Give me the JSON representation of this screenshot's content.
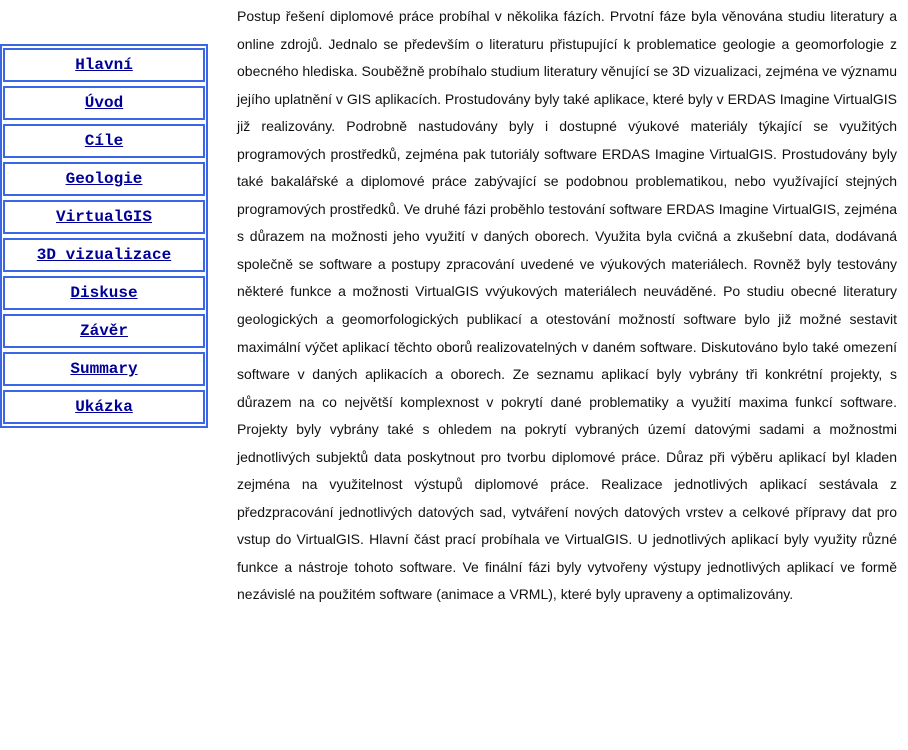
{
  "navigation": {
    "items": [
      "Hlavní",
      "Úvod",
      "Cíle",
      "Geologie",
      "VirtualGIS",
      "3D vizualizace",
      "Diskuse",
      "Závěr",
      "Summary",
      "Ukázka"
    ]
  },
  "content": {
    "paragraph": "Postup řešení diplomové práce probíhal v několika fázích. Prvotní fáze byla věnována studiu literatury a online zdrojů. Jednalo se především o literaturu přistupující k problematice geologie a geomorfologie z obecného hlediska. Souběžně probíhalo studium literatury věnující se 3D vizualizaci, zejména ve významu jejího uplatnění v GIS aplikacích. Prostudovány byly také aplikace, které byly v ERDAS Imagine VirtualGIS již realizovány. Podrobně nastudovány byly i dostupné výukové materiály týkající se využitých programových prostředků, zejména pak tutoriály software ERDAS Imagine VirtualGIS. Prostudovány byly také bakalářské a diplomové práce zabývající se podobnou problematikou, nebo využívající stejných programových prostředků. Ve druhé fázi proběhlo testování software ERDAS Imagine VirtualGIS, zejména s důrazem na možnosti jeho využití v daných oborech. Využita byla cvičná a zkušební data, dodávaná společně se software a postupy zpracování uvedené ve výukových materiálech. Rovněž byly testovány některé funkce a možnosti VirtualGIS vvýukových materiálech neuváděné. Po studiu obecné literatury geologických a geomorfologických publikací a otestování možností software bylo již možné sestavit maximální výčet aplikací těchto oborů realizovatelných v daném software. Diskutováno bylo také omezení software v daných aplikacích a oborech. Ze seznamu aplikací byly vybrány tři konkrétní projekty, s důrazem na co největší komplexnost v pokrytí dané problematiky a využití maxima funkcí software. Projekty byly vybrány také s ohledem na pokrytí vybraných území datovými sadami a možnostmi jednotlivých subjektů data poskytnout pro tvorbu diplomové práce. Důraz při výběru aplikací byl kladen zejména na využitelnost výstupů diplomové práce. Realizace jednotlivých aplikací sestávala z předzpracování jednotlivých datových sad, vytváření nových datových vrstev a celkové přípravy dat pro vstup do VirtualGIS. Hlavní část prací probíhala ve VirtualGIS. U jednotlivých aplikací byly využity různé funkce a nástroje tohoto software. Ve finální fázi byly vytvořeny výstupy jednotlivých aplikací ve formě nezávislé na použitém software (animace a VRML), které byly upraveny a optimalizovány."
  }
}
